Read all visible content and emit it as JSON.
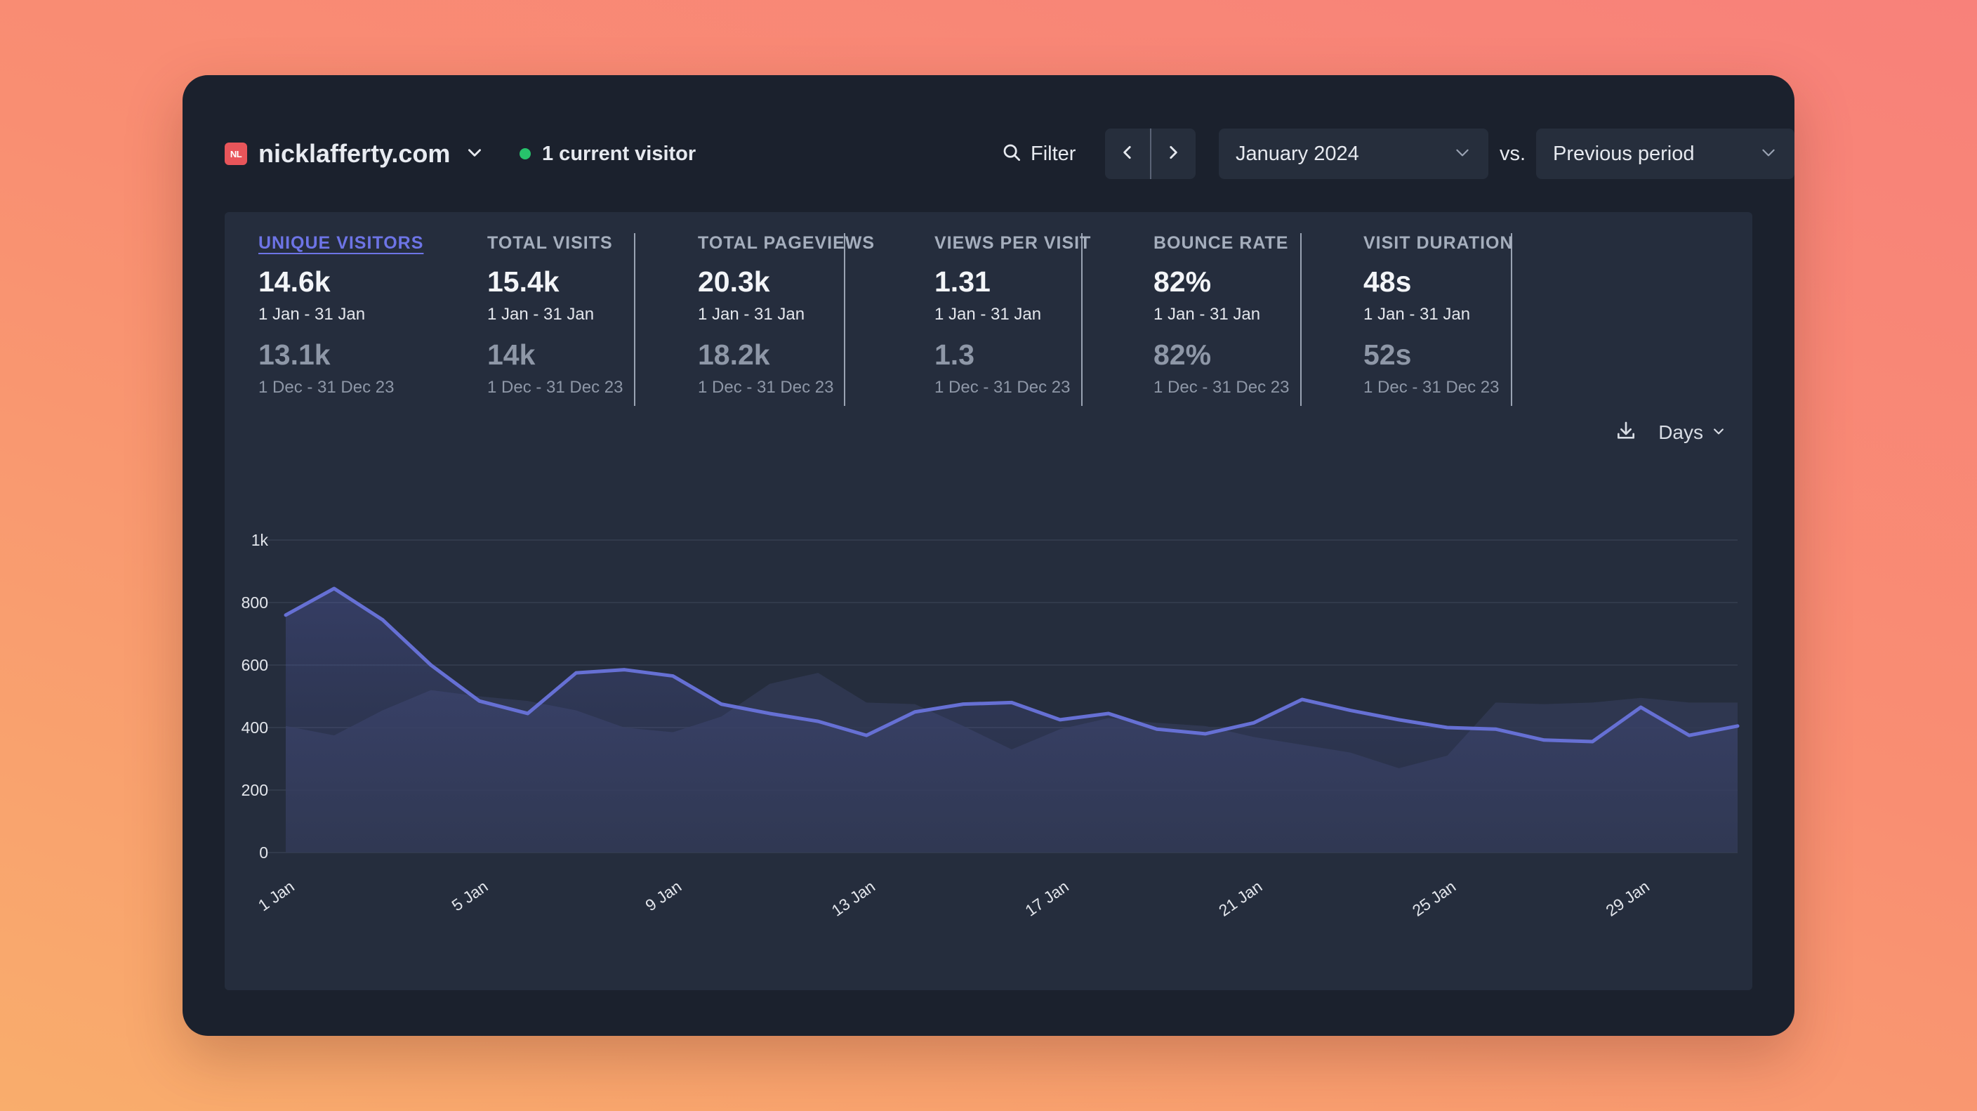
{
  "site": {
    "favicon_text": "NL",
    "name": "nicklafferty.com",
    "current_visitors": "1 current visitor"
  },
  "toolbar": {
    "filter_label": "Filter",
    "period_label": "January 2024",
    "vs_label": "vs.",
    "compare_label": "Previous period"
  },
  "icons": {
    "filter": "search-icon",
    "prev": "chevron-left-icon",
    "next": "chevron-right-icon",
    "dropdown": "chevron-down-icon",
    "download": "download-icon"
  },
  "stats": [
    {
      "label": "UNIQUE VISITORS",
      "value": "14.6k",
      "range": "1 Jan - 31 Jan",
      "prev_value": "13.1k",
      "prev_range": "1 Dec - 31 Dec 23",
      "active": true
    },
    {
      "label": "TOTAL VISITS",
      "value": "15.4k",
      "range": "1 Jan - 31 Jan",
      "prev_value": "14k",
      "prev_range": "1 Dec - 31 Dec 23",
      "active": false
    },
    {
      "label": "TOTAL PAGEVIEWS",
      "value": "20.3k",
      "range": "1 Jan - 31 Jan",
      "prev_value": "18.2k",
      "prev_range": "1 Dec - 31 Dec 23",
      "active": false
    },
    {
      "label": "VIEWS PER VISIT",
      "value": "1.31",
      "range": "1 Jan - 31 Jan",
      "prev_value": "1.3",
      "prev_range": "1 Dec - 31 Dec 23",
      "active": false
    },
    {
      "label": "BOUNCE RATE",
      "value": "82%",
      "range": "1 Jan - 31 Jan",
      "prev_value": "82%",
      "prev_range": "1 Dec - 31 Dec 23",
      "active": false
    },
    {
      "label": "VISIT DURATION",
      "value": "48s",
      "range": "1 Jan - 31 Jan",
      "prev_value": "52s",
      "prev_range": "1 Dec - 31 Dec 23",
      "active": false
    }
  ],
  "chart_controls": {
    "interval_label": "Days"
  },
  "colors": {
    "accent": "#6d74e6",
    "line": "#6670d4",
    "positive_dot": "#27c26b"
  },
  "chart_data": {
    "type": "line",
    "x": [
      1,
      2,
      3,
      4,
      5,
      6,
      7,
      8,
      9,
      10,
      11,
      12,
      13,
      14,
      15,
      16,
      17,
      18,
      19,
      20,
      21,
      22,
      23,
      24,
      25,
      26,
      27,
      28,
      29,
      30,
      31
    ],
    "x_tick_labels": [
      "1 Jan",
      "5 Jan",
      "9 Jan",
      "13 Jan",
      "17 Jan",
      "21 Jan",
      "25 Jan",
      "29 Jan"
    ],
    "x_tick_days": [
      1,
      5,
      9,
      13,
      17,
      21,
      25,
      29
    ],
    "y_ticks": [
      "0",
      "200",
      "400",
      "600",
      "800",
      "1k"
    ],
    "ylim": [
      0,
      1000
    ],
    "grid": true,
    "series": [
      {
        "role": "current",
        "style": "line-with-fill",
        "values": [
          760,
          845,
          745,
          600,
          485,
          445,
          575,
          585,
          565,
          475,
          445,
          420,
          375,
          450,
          475,
          480,
          425,
          445,
          395,
          380,
          415,
          490,
          455,
          425,
          400,
          395,
          360,
          355,
          465,
          375,
          405
        ]
      },
      {
        "role": "previous",
        "style": "area",
        "values": [
          405,
          375,
          455,
          520,
          500,
          485,
          455,
          400,
          385,
          435,
          540,
          575,
          480,
          475,
          405,
          330,
          395,
          430,
          415,
          405,
          370,
          345,
          320,
          270,
          310,
          480,
          475,
          480,
          495,
          480,
          480
        ]
      }
    ]
  }
}
